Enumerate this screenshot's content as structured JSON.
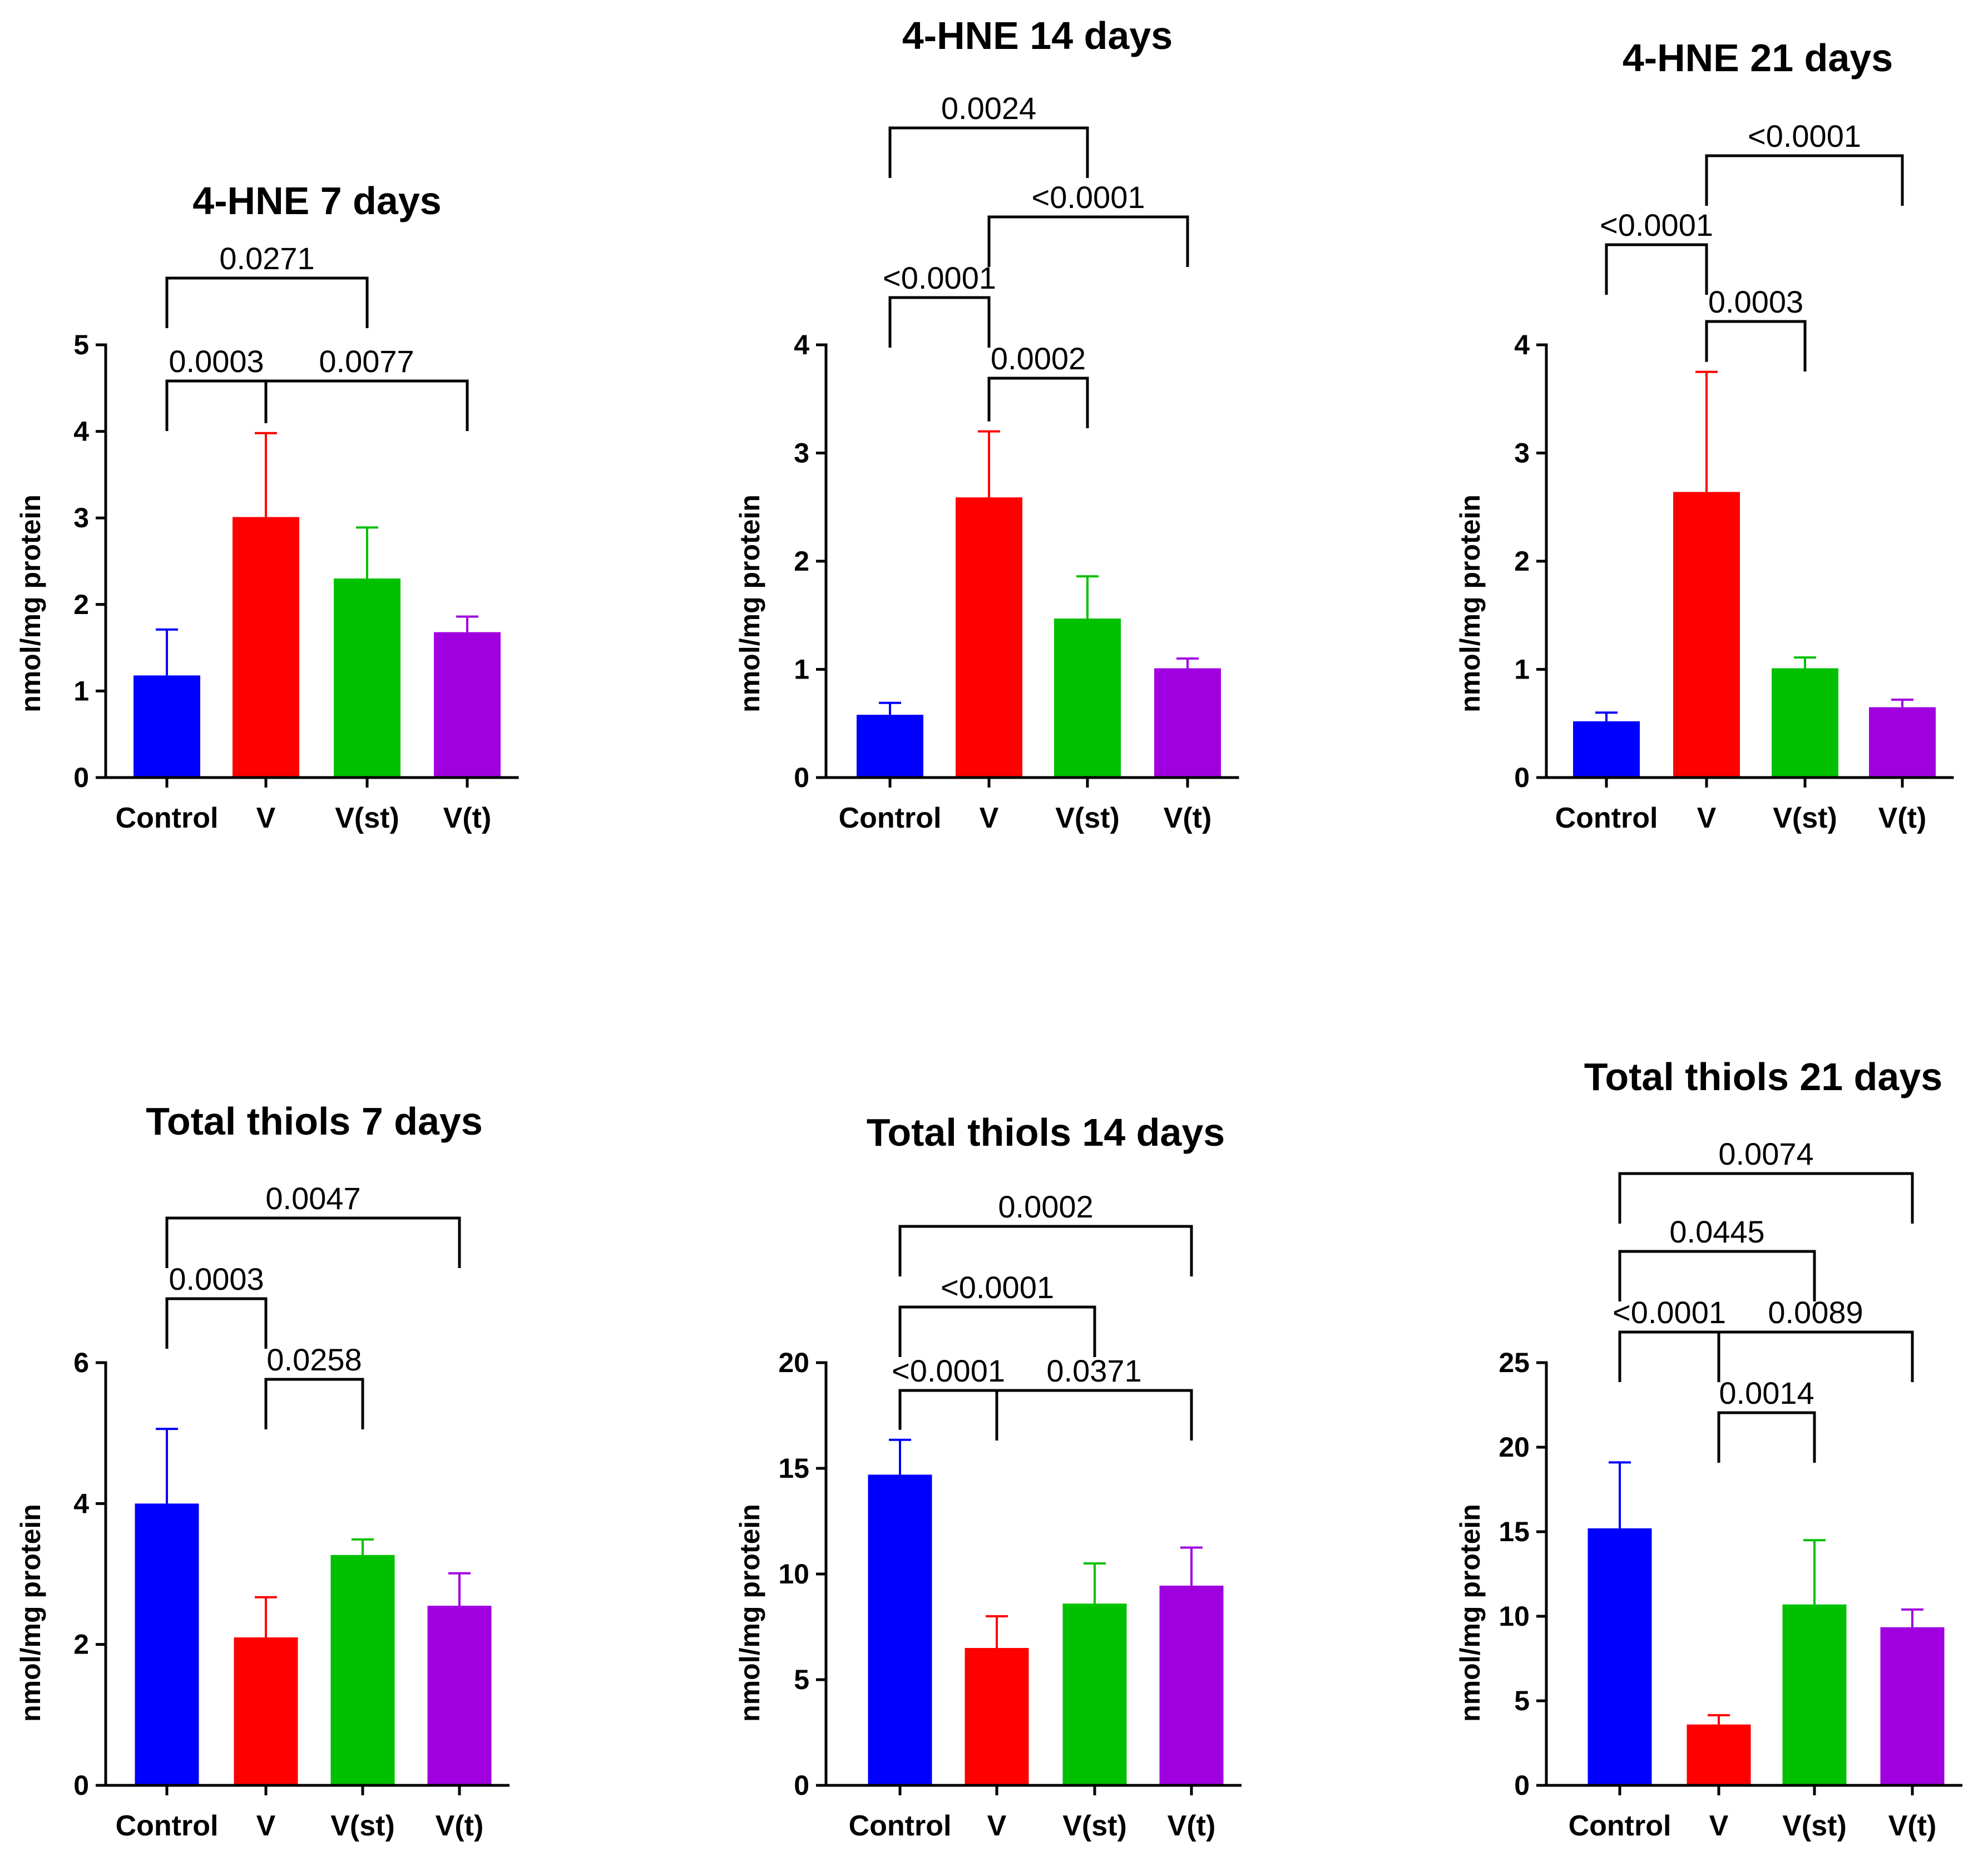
{
  "colors": {
    "Control": "#0000ff",
    "V": "#ff0000",
    "V(st)": "#00c000",
    "V(t)": "#a000e0",
    "axis": "#000000"
  },
  "chart_data": [
    {
      "id": "hne-7",
      "type": "bar",
      "title": "4-HNE 7 days",
      "ylabel": "nmol/mg protein",
      "xlabel": "",
      "categories": [
        "Control",
        "V",
        "V(st)",
        "V(t)"
      ],
      "values": [
        1.18,
        3.01,
        2.3,
        1.68
      ],
      "errors": [
        0.53,
        0.97,
        0.59,
        0.18
      ],
      "ylim": [
        0,
        5
      ],
      "yticks": [
        "0",
        "1",
        "2",
        "3",
        "4",
        "5"
      ],
      "comparisons": [
        {
          "from": "Control",
          "to": "V(st)",
          "p": "0.0271"
        },
        {
          "from": "Control",
          "to": "V",
          "p": "0.0003"
        },
        {
          "from": "V",
          "to": "V(t)",
          "p": "0.0077"
        }
      ]
    },
    {
      "id": "hne-14",
      "type": "bar",
      "title": "4-HNE 14 days",
      "ylabel": "nmol/mg protein",
      "xlabel": "",
      "categories": [
        "Control",
        "V",
        "V(st)",
        "V(t)"
      ],
      "values": [
        0.58,
        2.59,
        1.47,
        1.01
      ],
      "errors": [
        0.11,
        0.61,
        0.39,
        0.09
      ],
      "ylim": [
        0,
        4
      ],
      "yticks": [
        "0",
        "1",
        "2",
        "3",
        "4"
      ],
      "comparisons": [
        {
          "from": "Control",
          "to": "V(st)",
          "p": "0.0024"
        },
        {
          "from": "V",
          "to": "V(t)",
          "p": "<0.0001"
        },
        {
          "from": "Control",
          "to": "V",
          "p": "<0.0001"
        },
        {
          "from": "V",
          "to": "V(st)",
          "p": "0.0002"
        }
      ]
    },
    {
      "id": "hne-21",
      "type": "bar",
      "title": "4-HNE 21 days",
      "ylabel": "nmol/mg protein",
      "xlabel": "",
      "categories": [
        "Control",
        "V",
        "V(st)",
        "V(t)"
      ],
      "values": [
        0.52,
        2.64,
        1.01,
        0.65
      ],
      "errors": [
        0.08,
        1.11,
        0.1,
        0.07
      ],
      "ylim": [
        0,
        4
      ],
      "yticks": [
        "0",
        "1",
        "2",
        "3",
        "4"
      ],
      "comparisons": [
        {
          "from": "V",
          "to": "V(t)",
          "p": "<0.0001"
        },
        {
          "from": "Control",
          "to": "V",
          "p": "<0.0001"
        },
        {
          "from": "V",
          "to": "V(st)",
          "p": "0.0003"
        }
      ]
    },
    {
      "id": "thiols-7",
      "type": "bar",
      "title": "Total thiols 7 days",
      "ylabel": "nmol/mg protein",
      "xlabel": "",
      "categories": [
        "Control",
        "V",
        "V(st)",
        "V(t)"
      ],
      "values": [
        4.0,
        2.1,
        3.27,
        2.55
      ],
      "errors": [
        1.06,
        0.57,
        0.22,
        0.46
      ],
      "ylim": [
        0,
        6
      ],
      "yticks": [
        "0",
        "2",
        "4",
        "6"
      ],
      "comparisons": [
        {
          "from": "Control",
          "to": "V(t)",
          "p": "0.0047"
        },
        {
          "from": "Control",
          "to": "V",
          "p": "0.0003"
        },
        {
          "from": "V",
          "to": "V(st)",
          "p": "0.0258"
        }
      ]
    },
    {
      "id": "thiols-14",
      "type": "bar",
      "title": "Total thiols 14 days",
      "ylabel": "nmol/mg protein",
      "xlabel": "",
      "categories": [
        "Control",
        "V",
        "V(st)",
        "V(t)"
      ],
      "values": [
        14.7,
        6.5,
        8.6,
        9.45
      ],
      "errors": [
        1.65,
        1.5,
        1.9,
        1.8
      ],
      "ylim": [
        0,
        20
      ],
      "yticks": [
        "0",
        "5",
        "10",
        "15",
        "20"
      ],
      "comparisons": [
        {
          "from": "Control",
          "to": "V(t)",
          "p": "0.0002"
        },
        {
          "from": "Control",
          "to": "V(st)",
          "p": "<0.0001"
        },
        {
          "from": "Control",
          "to": "V",
          "p": "<0.0001"
        },
        {
          "from": "V",
          "to": "V(t)",
          "p": "0.0371"
        }
      ]
    },
    {
      "id": "thiols-21",
      "type": "bar",
      "title": "Total thiols 21 days",
      "ylabel": "nmol/mg protein",
      "xlabel": "",
      "categories": [
        "Control",
        "V",
        "V(st)",
        "V(t)"
      ],
      "values": [
        15.2,
        3.6,
        10.7,
        9.35
      ],
      "errors": [
        3.9,
        0.55,
        3.8,
        1.05
      ],
      "ylim": [
        0,
        25
      ],
      "yticks": [
        "0",
        "5",
        "10",
        "15",
        "20",
        "25"
      ],
      "comparisons": [
        {
          "from": "Control",
          "to": "V(t)",
          "p": "0.0074"
        },
        {
          "from": "Control",
          "to": "V(st)",
          "p": "0.0445"
        },
        {
          "from": "Control",
          "to": "V",
          "p": "<0.0001"
        },
        {
          "from": "V",
          "to": "V(t)",
          "p": "0.0089"
        },
        {
          "from": "V",
          "to": "V(st)",
          "p": "0.0014"
        }
      ]
    }
  ]
}
